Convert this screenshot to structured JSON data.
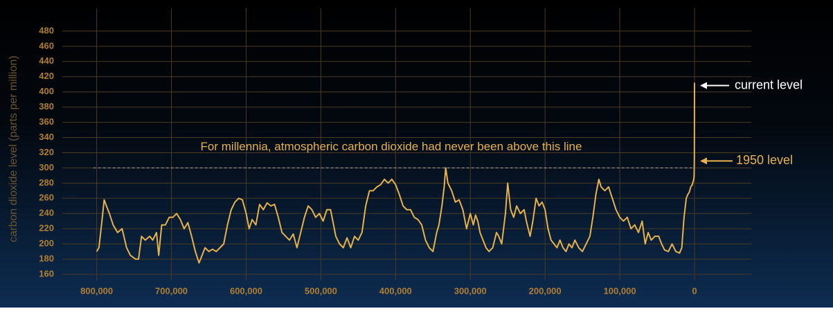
{
  "chart_data": {
    "type": "line",
    "y_label": "carbon dioxide level (parts per million)",
    "color": "#e5b24e",
    "xlim": [
      846000,
      -76000
    ],
    "ylim": [
      152,
      510
    ],
    "xticks": [
      {
        "value": 800000,
        "label": "800,000"
      },
      {
        "value": 700000,
        "label": "700,000"
      },
      {
        "value": 600000,
        "label": "600,000"
      },
      {
        "value": 500000,
        "label": "500,000"
      },
      {
        "value": 400000,
        "label": "400,000"
      },
      {
        "value": 300000,
        "label": "300,000"
      },
      {
        "value": 200000,
        "label": "200,000"
      },
      {
        "value": 100000,
        "label": "100,000"
      },
      0
    ],
    "yticks": [
      160,
      180,
      200,
      220,
      240,
      260,
      280,
      300,
      320,
      340,
      360,
      380,
      400,
      420,
      440,
      460,
      480
    ],
    "grid": true,
    "reference_line": {
      "value": 300,
      "label": "For millennia, atmospheric carbon dioxide had never been above this line"
    },
    "annotations": [
      "current level",
      "1950 level"
    ],
    "x": [
      800000,
      797000,
      793000,
      790000,
      787000,
      783000,
      778000,
      772000,
      766000,
      760000,
      755000,
      748000,
      744000,
      740000,
      735000,
      729000,
      725000,
      720000,
      717000,
      713000,
      708000,
      703000,
      698000,
      693000,
      688000,
      683000,
      678000,
      673000,
      668000,
      663000,
      659000,
      655000,
      650000,
      645000,
      640000,
      635000,
      630000,
      625000,
      620000,
      615000,
      610000,
      605000,
      600000,
      596000,
      592000,
      587000,
      582000,
      577000,
      572000,
      567000,
      562000,
      557000,
      552000,
      547000,
      542000,
      537000,
      532000,
      527000,
      522000,
      517000,
      512000,
      507000,
      502000,
      497000,
      492000,
      487000,
      480000,
      475000,
      470000,
      465000,
      460000,
      455000,
      450000,
      445000,
      440000,
      435000,
      430000,
      425000,
      420000,
      415000,
      410000,
      405000,
      400000,
      395000,
      390000,
      385000,
      380000,
      375000,
      370000,
      365000,
      360000,
      355000,
      350000,
      345000,
      342000,
      338000,
      335000,
      333000,
      330000,
      325000,
      320000,
      315000,
      310000,
      305000,
      300000,
      296000,
      293000,
      290000,
      287000,
      283000,
      279000,
      275000,
      270000,
      265000,
      262000,
      258000,
      253000,
      250000,
      246000,
      242000,
      238000,
      233000,
      228000,
      225000,
      220000,
      216000,
      212000,
      208000,
      204000,
      200000,
      196000,
      192000,
      188000,
      184000,
      180000,
      176000,
      172000,
      168000,
      164000,
      160000,
      155000,
      150000,
      145000,
      140000,
      136000,
      132000,
      128000,
      125000,
      120000,
      115000,
      110000,
      105000,
      100000,
      95000,
      90000,
      85000,
      80000,
      75000,
      70000,
      66000,
      62000,
      58000,
      53000,
      48000,
      44000,
      40000,
      35000,
      30000,
      25000,
      20000,
      17000,
      14000,
      11000,
      9000,
      7000,
      5000,
      3000,
      1000,
      500,
      200,
      100,
      0
    ],
    "values": [
      190,
      195,
      230,
      258,
      250,
      240,
      225,
      215,
      220,
      195,
      185,
      180,
      180,
      210,
      205,
      210,
      205,
      215,
      185,
      225,
      225,
      235,
      235,
      240,
      232,
      220,
      228,
      210,
      190,
      175,
      185,
      195,
      190,
      193,
      190,
      195,
      200,
      225,
      245,
      255,
      260,
      258,
      240,
      220,
      232,
      225,
      252,
      245,
      254,
      250,
      252,
      235,
      215,
      210,
      205,
      213,
      195,
      215,
      235,
      250,
      245,
      235,
      240,
      230,
      245,
      245,
      210,
      200,
      195,
      208,
      195,
      210,
      205,
      215,
      250,
      270,
      270,
      275,
      278,
      285,
      280,
      285,
      278,
      265,
      250,
      245,
      245,
      235,
      232,
      225,
      205,
      195,
      190,
      215,
      225,
      250,
      275,
      300,
      280,
      270,
      255,
      258,
      245,
      220,
      240,
      225,
      238,
      230,
      215,
      205,
      195,
      190,
      195,
      215,
      210,
      200,
      240,
      280,
      245,
      235,
      250,
      240,
      245,
      230,
      210,
      232,
      260,
      250,
      255,
      245,
      220,
      205,
      200,
      195,
      205,
      195,
      190,
      200,
      195,
      205,
      195,
      190,
      200,
      210,
      235,
      265,
      285,
      275,
      270,
      275,
      260,
      245,
      235,
      230,
      235,
      220,
      225,
      215,
      230,
      200,
      215,
      205,
      210,
      210,
      200,
      192,
      190,
      200,
      190,
      188,
      195,
      235,
      260,
      265,
      268,
      275,
      278,
      285,
      290,
      310,
      350,
      412
    ]
  }
}
